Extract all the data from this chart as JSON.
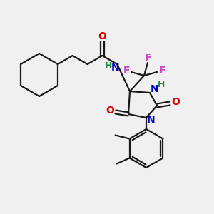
{
  "bg_color": "#f0f0f0",
  "line_color": "#1a1a1a",
  "bond_width": 1.6,
  "fig_size": [
    3.0,
    3.0
  ],
  "dpi": 100,
  "colors": {
    "O": "#dd0000",
    "N": "#0000cc",
    "F": "#cc44cc",
    "H": "#228844",
    "C": "#1a1a1a"
  }
}
